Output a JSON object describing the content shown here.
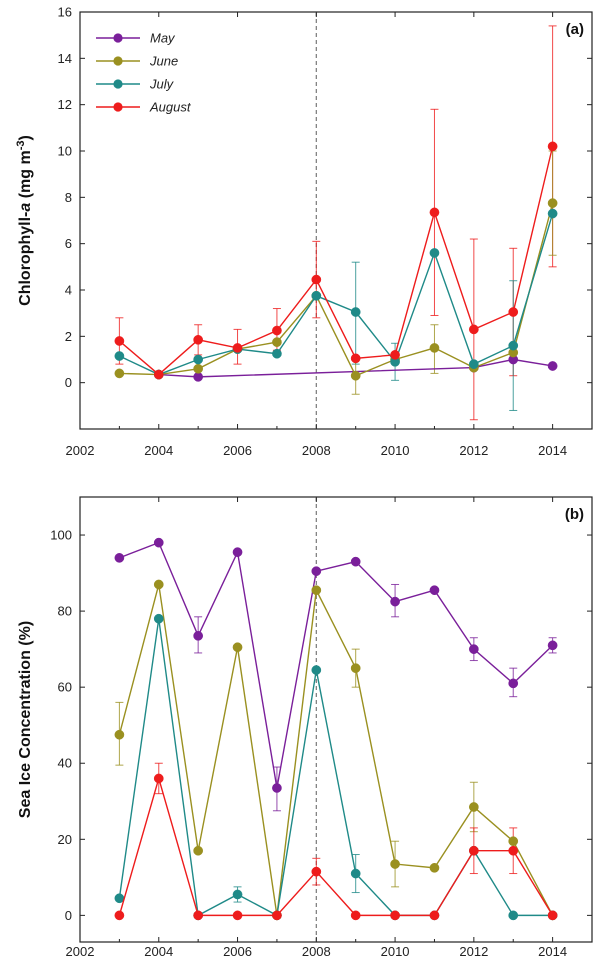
{
  "colors": {
    "May": "#7a1f9a",
    "June": "#9a9020",
    "July": "#1f8a88",
    "August": "#ee1c1c"
  },
  "chart_data": [
    {
      "type": "line",
      "panel_label": "(a)",
      "ylabel_prefix": "Chlorophyll-",
      "ylabel_italic": "a",
      "ylabel_suffix": " (mg m",
      "ylabel_sup": "-3",
      "ylabel_end": ")",
      "xlim": [
        2002,
        2015
      ],
      "ylim": [
        -2,
        16
      ],
      "xticks": [
        2002,
        2004,
        2006,
        2008,
        2010,
        2012,
        2014
      ],
      "yticks": [
        0,
        2,
        4,
        6,
        8,
        10,
        12,
        14,
        16
      ],
      "vline": 2008,
      "legend": [
        "May",
        "June",
        "July",
        "August"
      ],
      "series": [
        {
          "name": "May",
          "points": [
            [
              2004,
              0.35
            ],
            [
              2005,
              0.25
            ],
            [
              2012,
              0.65
            ],
            [
              2013,
              1.0
            ],
            [
              2014,
              0.72
            ]
          ]
        },
        {
          "name": "June",
          "points": [
            [
              2003,
              0.4
            ],
            [
              2004,
              0.35
            ],
            [
              2005,
              0.6
            ],
            [
              2006,
              1.45
            ],
            [
              2007,
              1.75
            ],
            [
              2008,
              3.75
            ],
            [
              2009,
              0.3
            ],
            [
              2010,
              1.0
            ],
            [
              2011,
              1.5
            ],
            [
              2012,
              0.65
            ],
            [
              2013,
              1.3
            ],
            [
              2014,
              7.75
            ]
          ]
        },
        {
          "name": "July",
          "points": [
            [
              2003,
              1.15
            ],
            [
              2004,
              0.35
            ],
            [
              2005,
              1.0
            ],
            [
              2006,
              1.45
            ],
            [
              2007,
              1.25
            ],
            [
              2008,
              3.75
            ],
            [
              2009,
              3.05
            ],
            [
              2010,
              0.9
            ],
            [
              2011,
              5.6
            ],
            [
              2012,
              0.8
            ],
            [
              2013,
              1.6
            ],
            [
              2014,
              7.3
            ]
          ]
        },
        {
          "name": "August",
          "points": [
            [
              2003,
              1.8
            ],
            [
              2004,
              0.35
            ],
            [
              2005,
              1.85
            ],
            [
              2006,
              1.5
            ],
            [
              2007,
              2.25
            ],
            [
              2008,
              4.45
            ],
            [
              2009,
              1.05
            ],
            [
              2010,
              1.2
            ],
            [
              2011,
              7.35
            ],
            [
              2012,
              2.3
            ],
            [
              2013,
              3.05
            ],
            [
              2014,
              10.2
            ]
          ]
        }
      ],
      "errorbars": [
        {
          "name": "August",
          "x": 2003,
          "low": 0.8,
          "high": 2.8
        },
        {
          "name": "August",
          "x": 2005,
          "low": 1.2,
          "high": 2.5
        },
        {
          "name": "August",
          "x": 2006,
          "low": 0.8,
          "high": 2.3
        },
        {
          "name": "August",
          "x": 2007,
          "low": 1.4,
          "high": 3.2
        },
        {
          "name": "August",
          "x": 2008,
          "low": 2.8,
          "high": 6.1
        },
        {
          "name": "July",
          "x": 2009,
          "low": 0.8,
          "high": 5.2
        },
        {
          "name": "June",
          "x": 2009,
          "low": -0.5,
          "high": 1.0
        },
        {
          "name": "July",
          "x": 2010,
          "low": 0.1,
          "high": 1.7
        },
        {
          "name": "August",
          "x": 2011,
          "low": 2.9,
          "high": 11.8
        },
        {
          "name": "June",
          "x": 2011,
          "low": 0.4,
          "high": 2.5
        },
        {
          "name": "August",
          "x": 2012,
          "low": -1.6,
          "high": 6.2
        },
        {
          "name": "August",
          "x": 2013,
          "low": 0.3,
          "high": 5.8
        },
        {
          "name": "July",
          "x": 2013,
          "low": -1.2,
          "high": 4.4
        },
        {
          "name": "August",
          "x": 2014,
          "low": 5.0,
          "high": 15.4
        },
        {
          "name": "June",
          "x": 2014,
          "low": 5.5,
          "high": 10.0
        }
      ]
    },
    {
      "type": "line",
      "panel_label": "(b)",
      "ylabel": "Sea Ice Concentration (%)",
      "xlim": [
        2002,
        2015
      ],
      "ylim": [
        -7,
        110
      ],
      "xticks": [
        2002,
        2004,
        2006,
        2008,
        2010,
        2012,
        2014
      ],
      "yticks": [
        0,
        20,
        40,
        60,
        80,
        100
      ],
      "vline": 2008,
      "series": [
        {
          "name": "May",
          "points": [
            [
              2003,
              94
            ],
            [
              2004,
              98
            ],
            [
              2005,
              73.5
            ],
            [
              2006,
              95.5
            ],
            [
              2007,
              33.5
            ],
            [
              2008,
              90.5
            ],
            [
              2009,
              93
            ],
            [
              2010,
              82.5
            ],
            [
              2011,
              85.5
            ],
            [
              2012,
              70
            ],
            [
              2013,
              61
            ],
            [
              2014,
              71
            ]
          ]
        },
        {
          "name": "June",
          "points": [
            [
              2003,
              47.5
            ],
            [
              2004,
              87
            ],
            [
              2005,
              17
            ],
            [
              2006,
              70.5
            ],
            [
              2007,
              0
            ],
            [
              2008,
              85.5
            ],
            [
              2009,
              65
            ],
            [
              2010,
              13.5
            ],
            [
              2011,
              12.5
            ],
            [
              2012,
              28.5
            ],
            [
              2013,
              19.5
            ],
            [
              2014,
              0
            ]
          ]
        },
        {
          "name": "July",
          "points": [
            [
              2003,
              4.5
            ],
            [
              2004,
              78
            ],
            [
              2005,
              0
            ],
            [
              2006,
              5.5
            ],
            [
              2007,
              0
            ],
            [
              2008,
              64.5
            ],
            [
              2009,
              11
            ],
            [
              2010,
              0
            ],
            [
              2011,
              0
            ],
            [
              2012,
              17
            ],
            [
              2013,
              0
            ],
            [
              2014,
              0
            ]
          ]
        },
        {
          "name": "August",
          "points": [
            [
              2003,
              0
            ],
            [
              2004,
              36
            ],
            [
              2005,
              0
            ],
            [
              2006,
              0
            ],
            [
              2007,
              0
            ],
            [
              2008,
              11.5
            ],
            [
              2009,
              0
            ],
            [
              2010,
              0
            ],
            [
              2011,
              0
            ],
            [
              2012,
              17
            ],
            [
              2013,
              17
            ],
            [
              2014,
              0
            ]
          ]
        }
      ],
      "errorbars": [
        {
          "name": "June",
          "x": 2003,
          "low": 39.5,
          "high": 56
        },
        {
          "name": "August",
          "x": 2004,
          "low": 32,
          "high": 40
        },
        {
          "name": "May",
          "x": 2005,
          "low": 69,
          "high": 78.5
        },
        {
          "name": "July",
          "x": 2006,
          "low": 3.5,
          "high": 7.5
        },
        {
          "name": "May",
          "x": 2007,
          "low": 27.5,
          "high": 39
        },
        {
          "name": "August",
          "x": 2008,
          "low": 8,
          "high": 15
        },
        {
          "name": "June",
          "x": 2009,
          "low": 60,
          "high": 70
        },
        {
          "name": "July",
          "x": 2009,
          "low": 6,
          "high": 16
        },
        {
          "name": "May",
          "x": 2010,
          "low": 78.5,
          "high": 87
        },
        {
          "name": "June",
          "x": 2010,
          "low": 7.5,
          "high": 19.5
        },
        {
          "name": "June",
          "x": 2012,
          "low": 22,
          "high": 35
        },
        {
          "name": "August",
          "x": 2012,
          "low": 11,
          "high": 23
        },
        {
          "name": "May",
          "x": 2012,
          "low": 67,
          "high": 73
        },
        {
          "name": "May",
          "x": 2013,
          "low": 57.5,
          "high": 65
        },
        {
          "name": "August",
          "x": 2013,
          "low": 11,
          "high": 23
        },
        {
          "name": "May",
          "x": 2014,
          "low": 69,
          "high": 73
        }
      ]
    }
  ]
}
